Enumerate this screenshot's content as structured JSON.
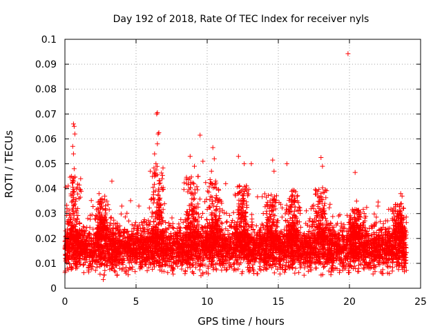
{
  "chart_data": {
    "type": "scatter",
    "title": "Day 192 of 2018, Rate Of TEC Index for receiver nyls",
    "xlabel": "GPS time / hours",
    "ylabel": "ROTI / TECUs",
    "xlim": [
      0,
      25
    ],
    "ylim": [
      0,
      0.1
    ],
    "xticks": [
      0,
      5,
      10,
      15,
      20,
      25
    ],
    "xtick_labels": [
      "0",
      "5",
      "10",
      "15",
      "20",
      "25"
    ],
    "yticks": [
      0,
      0.01,
      0.02,
      0.03,
      0.04,
      0.05,
      0.06,
      0.07,
      0.08,
      0.09,
      0.1
    ],
    "ytick_labels": [
      "0",
      "0.01",
      "0.02",
      "0.03",
      "0.04",
      "0.05",
      "0.06",
      "0.07",
      "0.08",
      "0.09",
      "0.1"
    ],
    "grid": true,
    "marker": "+",
    "color": "#ff0000",
    "series": [
      {
        "name": "ROTI",
        "x_range": [
          0,
          24
        ],
        "bulk_range": [
          0.007,
          0.025
        ],
        "notable_points": [
          {
            "x": 0.6,
            "y": 0.066
          },
          {
            "x": 0.65,
            "y": 0.065
          },
          {
            "x": 0.7,
            "y": 0.062
          },
          {
            "x": 0.55,
            "y": 0.057
          },
          {
            "x": 0.6,
            "y": 0.054
          },
          {
            "x": 0.65,
            "y": 0.048
          },
          {
            "x": 0.55,
            "y": 0.043
          },
          {
            "x": 2.4,
            "y": 0.038
          },
          {
            "x": 2.6,
            "y": 0.036
          },
          {
            "x": 2.8,
            "y": 0.037
          },
          {
            "x": 3.3,
            "y": 0.043
          },
          {
            "x": 2.7,
            "y": 0.0035
          },
          {
            "x": 4.0,
            "y": 0.033
          },
          {
            "x": 5.2,
            "y": 0.033
          },
          {
            "x": 6.0,
            "y": 0.047
          },
          {
            "x": 6.3,
            "y": 0.054
          },
          {
            "x": 6.45,
            "y": 0.07
          },
          {
            "x": 6.5,
            "y": 0.0705
          },
          {
            "x": 6.55,
            "y": 0.062
          },
          {
            "x": 6.6,
            "y": 0.0625
          },
          {
            "x": 6.5,
            "y": 0.058
          },
          {
            "x": 6.4,
            "y": 0.05
          },
          {
            "x": 6.3,
            "y": 0.045
          },
          {
            "x": 8.8,
            "y": 0.053
          },
          {
            "x": 9.1,
            "y": 0.049
          },
          {
            "x": 9.5,
            "y": 0.0615
          },
          {
            "x": 9.7,
            "y": 0.051
          },
          {
            "x": 10.4,
            "y": 0.0565
          },
          {
            "x": 10.5,
            "y": 0.052
          },
          {
            "x": 10.3,
            "y": 0.047
          },
          {
            "x": 11.3,
            "y": 0.042
          },
          {
            "x": 12.2,
            "y": 0.053
          },
          {
            "x": 12.6,
            "y": 0.05
          },
          {
            "x": 13.1,
            "y": 0.05
          },
          {
            "x": 14.6,
            "y": 0.0515
          },
          {
            "x": 14.7,
            "y": 0.047
          },
          {
            "x": 15.6,
            "y": 0.05
          },
          {
            "x": 18.0,
            "y": 0.0525
          },
          {
            "x": 18.1,
            "y": 0.049
          },
          {
            "x": 19.9,
            "y": 0.0942
          },
          {
            "x": 20.4,
            "y": 0.0465
          },
          {
            "x": 20.5,
            "y": 0.035
          },
          {
            "x": 22.0,
            "y": 0.033
          },
          {
            "x": 23.6,
            "y": 0.038
          },
          {
            "x": 23.7,
            "y": 0.037
          }
        ],
        "bursts": [
          {
            "x": 0.6,
            "peak": 0.045
          },
          {
            "x": 2.6,
            "peak": 0.036
          },
          {
            "x": 6.5,
            "peak": 0.05
          },
          {
            "x": 9.0,
            "peak": 0.045
          },
          {
            "x": 10.5,
            "peak": 0.044
          },
          {
            "x": 12.5,
            "peak": 0.042
          },
          {
            "x": 14.5,
            "peak": 0.038
          },
          {
            "x": 16.0,
            "peak": 0.04
          },
          {
            "x": 18.0,
            "peak": 0.042
          },
          {
            "x": 20.5,
            "peak": 0.032
          },
          {
            "x": 23.5,
            "peak": 0.034
          }
        ]
      }
    ]
  }
}
